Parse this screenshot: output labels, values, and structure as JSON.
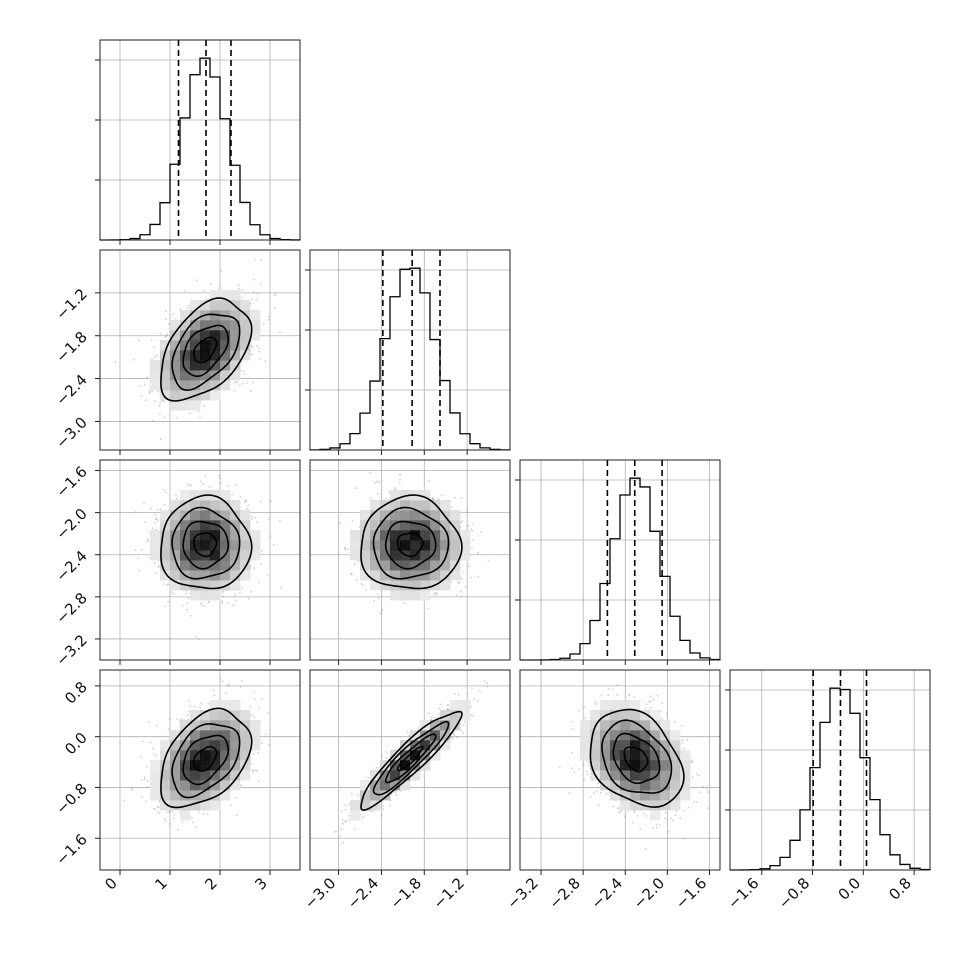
{
  "chart_data": {
    "type": "corner",
    "parameters": [
      {
        "range": [
          -0.4,
          3.6
        ],
        "ticks": [
          0,
          1,
          2,
          3
        ],
        "tick_labels": [
          "0",
          "1",
          "2",
          "3"
        ],
        "mean": 1.7,
        "sd": 0.45,
        "quantiles": [
          1.17,
          1.72,
          2.22
        ]
      },
      {
        "range": [
          -3.4,
          -0.6
        ],
        "ticks": [
          -3.0,
          -2.4,
          -1.8,
          -1.2
        ],
        "tick_labels": [
          "−3.0",
          "−2.4",
          "−1.8",
          "−1.2"
        ],
        "mean": -2.0,
        "sd": 0.35,
        "quantiles": [
          -2.38,
          -1.97,
          -1.58
        ]
      },
      {
        "range": [
          -3.4,
          -1.5
        ],
        "ticks": [
          -3.2,
          -2.8,
          -2.4,
          -2.0,
          -1.6
        ],
        "tick_labels": [
          "−3.2",
          "−2.8",
          "−2.4",
          "−2.0",
          "−1.6"
        ],
        "mean": -2.3,
        "sd": 0.22,
        "quantiles": [
          -2.57,
          -2.31,
          -2.05
        ]
      },
      {
        "range": [
          -2.1,
          1.05
        ],
        "ticks": [
          -1.6,
          -0.8,
          0.0,
          0.8
        ],
        "tick_labels": [
          "−1.6",
          "−0.8",
          "0.0",
          "0.8"
        ],
        "mean": -0.35,
        "sd": 0.38,
        "quantiles": [
          -0.79,
          -0.36,
          0.05
        ]
      }
    ],
    "correlations": [
      {
        "i": 1,
        "j": 0,
        "rho": 0.45
      },
      {
        "i": 2,
        "j": 0,
        "rho": 0.0
      },
      {
        "i": 2,
        "j": 1,
        "rho": 0.0
      },
      {
        "i": 3,
        "j": 0,
        "rho": 0.4
      },
      {
        "i": 3,
        "j": 1,
        "rho": 0.92
      },
      {
        "i": 3,
        "j": 2,
        "rho": -0.3
      }
    ],
    "contour_levels_sigma": [
      0.5,
      1.0,
      1.5,
      2.0
    ],
    "histogram_bins": 20,
    "grid": true,
    "colors": {
      "line": "#000000",
      "grid": "#b0b0b0",
      "points": "#777777"
    }
  }
}
